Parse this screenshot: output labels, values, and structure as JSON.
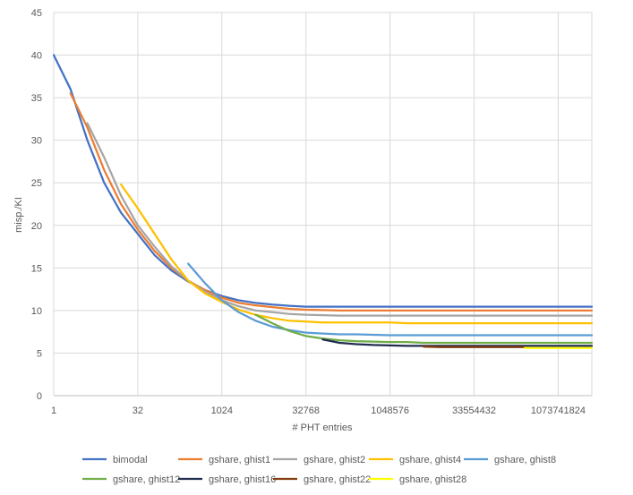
{
  "chart_data": {
    "type": "line",
    "xlabel": "# PHT entries",
    "ylabel": "misp./KI",
    "x_scale": "log2",
    "xlim": [
      1,
      4294967296
    ],
    "ylim": [
      0,
      45
    ],
    "y_ticks": [
      0,
      5,
      10,
      15,
      20,
      25,
      30,
      35,
      40,
      45
    ],
    "x_ticks": [
      {
        "value": 1,
        "label": "1"
      },
      {
        "value": 32,
        "label": "32"
      },
      {
        "value": 1024,
        "label": "1024"
      },
      {
        "value": 32768,
        "label": "32768"
      },
      {
        "value": 1048576,
        "label": "1048576"
      },
      {
        "value": 33554432,
        "label": "33554432"
      },
      {
        "value": 1073741824,
        "label": "1073741824"
      }
    ],
    "grid": true,
    "legend_position": "bottom",
    "series": [
      {
        "name": "bimodal",
        "color": "#4472C4",
        "x": [
          1,
          2,
          4,
          8,
          16,
          32,
          64,
          128,
          256,
          512,
          1024,
          2048,
          4096,
          8192,
          16384,
          32768,
          65536,
          131072,
          262144,
          524288,
          1048576,
          2097152,
          4194304,
          8388608,
          16777216,
          33554432,
          67108864,
          134217728,
          268435456,
          536870912,
          1073741824,
          2147483648,
          4294967296
        ],
        "y": [
          40,
          36,
          30,
          25,
          21.5,
          19,
          16.5,
          14.7,
          13.4,
          12.4,
          11.7,
          11.2,
          10.9,
          10.7,
          10.55,
          10.45,
          10.45,
          10.45,
          10.45,
          10.45,
          10.45,
          10.45,
          10.45,
          10.45,
          10.45,
          10.45,
          10.45,
          10.45,
          10.45,
          10.45,
          10.45,
          10.45,
          10.45
        ]
      },
      {
        "name": "gshare, ghist1",
        "color": "#ED7D31",
        "x": [
          2,
          4,
          8,
          16,
          32,
          64,
          128,
          256,
          512,
          1024,
          2048,
          4096,
          8192,
          16384,
          32768,
          65536,
          131072,
          262144,
          524288,
          1048576,
          2097152,
          4194304,
          8388608,
          16777216,
          33554432,
          67108864,
          134217728,
          268435456,
          536870912,
          1073741824,
          2147483648,
          4294967296
        ],
        "y": [
          35.5,
          31.5,
          26.5,
          22.5,
          19.5,
          17,
          15,
          13.5,
          12.4,
          11.5,
          10.9,
          10.6,
          10.4,
          10.2,
          10.1,
          10.05,
          10,
          10,
          10,
          10,
          10,
          10,
          10,
          10,
          10,
          10,
          10,
          10,
          10,
          10,
          10,
          10
        ]
      },
      {
        "name": "gshare, ghist2",
        "color": "#A5A5A5",
        "x": [
          4,
          8,
          16,
          32,
          64,
          128,
          256,
          512,
          1024,
          2048,
          4096,
          8192,
          16384,
          32768,
          65536,
          131072,
          262144,
          524288,
          1048576,
          2097152,
          4194304,
          8388608,
          16777216,
          33554432,
          67108864,
          134217728,
          268435456,
          536870912,
          1073741824,
          2147483648,
          4294967296
        ],
        "y": [
          32,
          28,
          23.5,
          20,
          17.5,
          15.2,
          13.5,
          12.2,
          11.2,
          10.5,
          10,
          9.8,
          9.6,
          9.5,
          9.45,
          9.4,
          9.4,
          9.4,
          9.4,
          9.4,
          9.4,
          9.4,
          9.4,
          9.4,
          9.4,
          9.4,
          9.4,
          9.4,
          9.4,
          9.4,
          9.4
        ]
      },
      {
        "name": "gshare, ghist4",
        "color": "#FFC000",
        "x": [
          16,
          32,
          64,
          128,
          256,
          512,
          1024,
          2048,
          4096,
          8192,
          16384,
          32768,
          65536,
          131072,
          262144,
          524288,
          1048576,
          2097152,
          4194304,
          8388608,
          16777216,
          33554432,
          67108864,
          134217728,
          268435456,
          536870912,
          1073741824,
          2147483648,
          4294967296
        ],
        "y": [
          24.8,
          22,
          19,
          16,
          13.5,
          12,
          11,
          10.1,
          9.5,
          9.1,
          8.8,
          8.7,
          8.6,
          8.6,
          8.6,
          8.6,
          8.6,
          8.5,
          8.5,
          8.5,
          8.5,
          8.5,
          8.5,
          8.5,
          8.5,
          8.5,
          8.5,
          8.5,
          8.5
        ]
      },
      {
        "name": "gshare, ghist8",
        "color": "#5B9BD5",
        "x": [
          256,
          512,
          1024,
          2048,
          4096,
          8192,
          16384,
          32768,
          65536,
          131072,
          262144,
          524288,
          1048576,
          2097152,
          4194304,
          8388608,
          16777216,
          33554432,
          67108864,
          134217728,
          268435456,
          536870912,
          1073741824,
          2147483648,
          4294967296
        ],
        "y": [
          15.5,
          13.2,
          11.2,
          9.8,
          8.8,
          8.1,
          7.7,
          7.4,
          7.3,
          7.2,
          7.2,
          7.15,
          7.1,
          7.1,
          7.1,
          7.1,
          7.1,
          7.1,
          7.1,
          7.1,
          7.1,
          7.1,
          7.1,
          7.1,
          7.1
        ]
      },
      {
        "name": "gshare, ghist12",
        "color": "#70AD47",
        "x": [
          4096,
          8192,
          16384,
          32768,
          65536,
          131072,
          262144,
          524288,
          1048576,
          2097152,
          4194304,
          8388608,
          16777216,
          33554432,
          67108864,
          134217728,
          268435456,
          536870912,
          1073741824,
          2147483648,
          4294967296
        ],
        "y": [
          9.5,
          8.5,
          7.6,
          7.0,
          6.7,
          6.5,
          6.4,
          6.35,
          6.3,
          6.3,
          6.2,
          6.2,
          6.2,
          6.2,
          6.2,
          6.2,
          6.2,
          6.2,
          6.2,
          6.2,
          6.2
        ]
      },
      {
        "name": "gshare, ghist16",
        "color": "#1F2D4E",
        "x": [
          65536,
          131072,
          262144,
          524288,
          1048576,
          2097152,
          4194304,
          8388608,
          16777216,
          33554432,
          67108864,
          134217728,
          268435456,
          536870912,
          1073741824,
          2147483648,
          4294967296
        ],
        "y": [
          6.6,
          6.2,
          6.05,
          5.95,
          5.9,
          5.85,
          5.85,
          5.85,
          5.85,
          5.85,
          5.85,
          5.85,
          5.85,
          5.85,
          5.85,
          5.85,
          5.85
        ]
      },
      {
        "name": "gshare, ghist22",
        "color": "#843C0C",
        "x": [
          4194304,
          8388608,
          16777216,
          33554432,
          67108864,
          134217728,
          268435456
        ],
        "y": [
          5.75,
          5.7,
          5.7,
          5.7,
          5.7,
          5.7,
          5.7
        ]
      },
      {
        "name": "gshare, ghist28",
        "color": "#FFFF00",
        "x": [
          268435456,
          536870912,
          1073741824,
          2147483648,
          4294967296
        ],
        "y": [
          5.6,
          5.6,
          5.6,
          5.6,
          5.6
        ]
      }
    ]
  }
}
